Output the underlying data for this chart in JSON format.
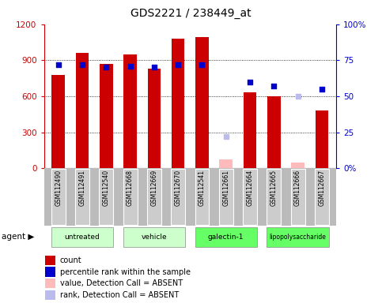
{
  "title": "GDS2221 / 238449_at",
  "samples": [
    "GSM112490",
    "GSM112491",
    "GSM112540",
    "GSM112668",
    "GSM112669",
    "GSM112670",
    "GSM112541",
    "GSM112661",
    "GSM112664",
    "GSM112665",
    "GSM112666",
    "GSM112667"
  ],
  "bar_values": [
    780,
    960,
    870,
    950,
    830,
    1080,
    1090,
    70,
    630,
    600,
    50,
    480
  ],
  "bar_colors": [
    "#cc0000",
    "#cc0000",
    "#cc0000",
    "#cc0000",
    "#cc0000",
    "#cc0000",
    "#cc0000",
    "#ffbbbb",
    "#cc0000",
    "#cc0000",
    "#ffbbbb",
    "#cc0000"
  ],
  "rank_values": [
    72,
    72,
    70,
    71,
    70,
    72,
    72,
    null,
    60,
    57,
    null,
    55
  ],
  "rank_absent_values": [
    null,
    null,
    null,
    null,
    null,
    null,
    null,
    22,
    null,
    null,
    50,
    null
  ],
  "groups_info": [
    {
      "label": "untreated",
      "start": 0,
      "end": 2,
      "color": "#ccffcc"
    },
    {
      "label": "vehicle",
      "start": 3,
      "end": 5,
      "color": "#ccffcc"
    },
    {
      "label": "galectin-1",
      "start": 6,
      "end": 8,
      "color": "#66ff66"
    },
    {
      "label": "lipopolysaccharide",
      "start": 9,
      "end": 11,
      "color": "#66ff66"
    }
  ],
  "ylim_left": [
    0,
    1200
  ],
  "ylim_right": [
    0,
    100
  ],
  "yticks_left": [
    0,
    300,
    600,
    900,
    1200
  ],
  "yticks_right": [
    0,
    25,
    50,
    75,
    100
  ],
  "legend_colors": [
    "#cc0000",
    "#0000cc",
    "#ffbbbb",
    "#bbbbee"
  ],
  "legend_labels": [
    "count",
    "percentile rank within the sample",
    "value, Detection Call = ABSENT",
    "rank, Detection Call = ABSENT"
  ],
  "bar_width": 0.55,
  "left_axis_color": "#cc0000",
  "right_axis_color": "#0000cc",
  "grid_color": "#000000",
  "sample_box_color": "#cccccc",
  "plot_bg_color": "#ffffff"
}
